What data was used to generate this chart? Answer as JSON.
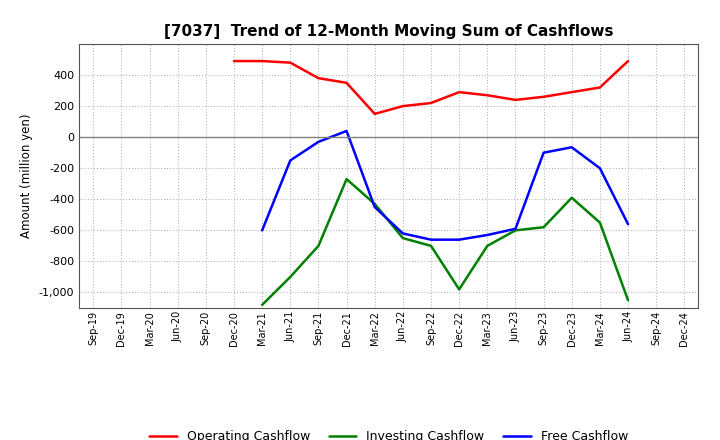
{
  "title": "[7037]  Trend of 12-Month Moving Sum of Cashflows",
  "ylabel": "Amount (million yen)",
  "ylim": [
    -1100,
    600
  ],
  "yticks": [
    -1000,
    -800,
    -600,
    -400,
    -200,
    0,
    200,
    400
  ],
  "x_labels": [
    "Sep-19",
    "Dec-19",
    "Mar-20",
    "Jun-20",
    "Sep-20",
    "Dec-20",
    "Mar-21",
    "Jun-21",
    "Sep-21",
    "Dec-21",
    "Mar-22",
    "Jun-22",
    "Sep-22",
    "Dec-22",
    "Mar-23",
    "Jun-23",
    "Sep-23",
    "Dec-23",
    "Mar-24",
    "Jun-24",
    "Sep-24",
    "Dec-24"
  ],
  "operating": [
    null,
    null,
    null,
    null,
    null,
    490,
    490,
    480,
    380,
    350,
    150,
    200,
    220,
    290,
    270,
    240,
    260,
    290,
    320,
    490,
    null,
    null
  ],
  "investing": [
    null,
    null,
    null,
    null,
    null,
    null,
    -1080,
    -900,
    -700,
    -270,
    -430,
    -650,
    -700,
    -980,
    -700,
    -600,
    -580,
    -390,
    -550,
    -1050,
    null,
    null
  ],
  "free": [
    null,
    null,
    null,
    null,
    null,
    null,
    -600,
    -150,
    -30,
    40,
    -450,
    -620,
    -660,
    -660,
    -630,
    -590,
    -100,
    -65,
    -200,
    -560,
    null,
    null
  ],
  "operating_color": "#ff0000",
  "investing_color": "#008000",
  "free_color": "#0000ff",
  "bg_color": "#ffffff",
  "grid_color": "#aaaaaa",
  "zero_line_color": "#808080"
}
